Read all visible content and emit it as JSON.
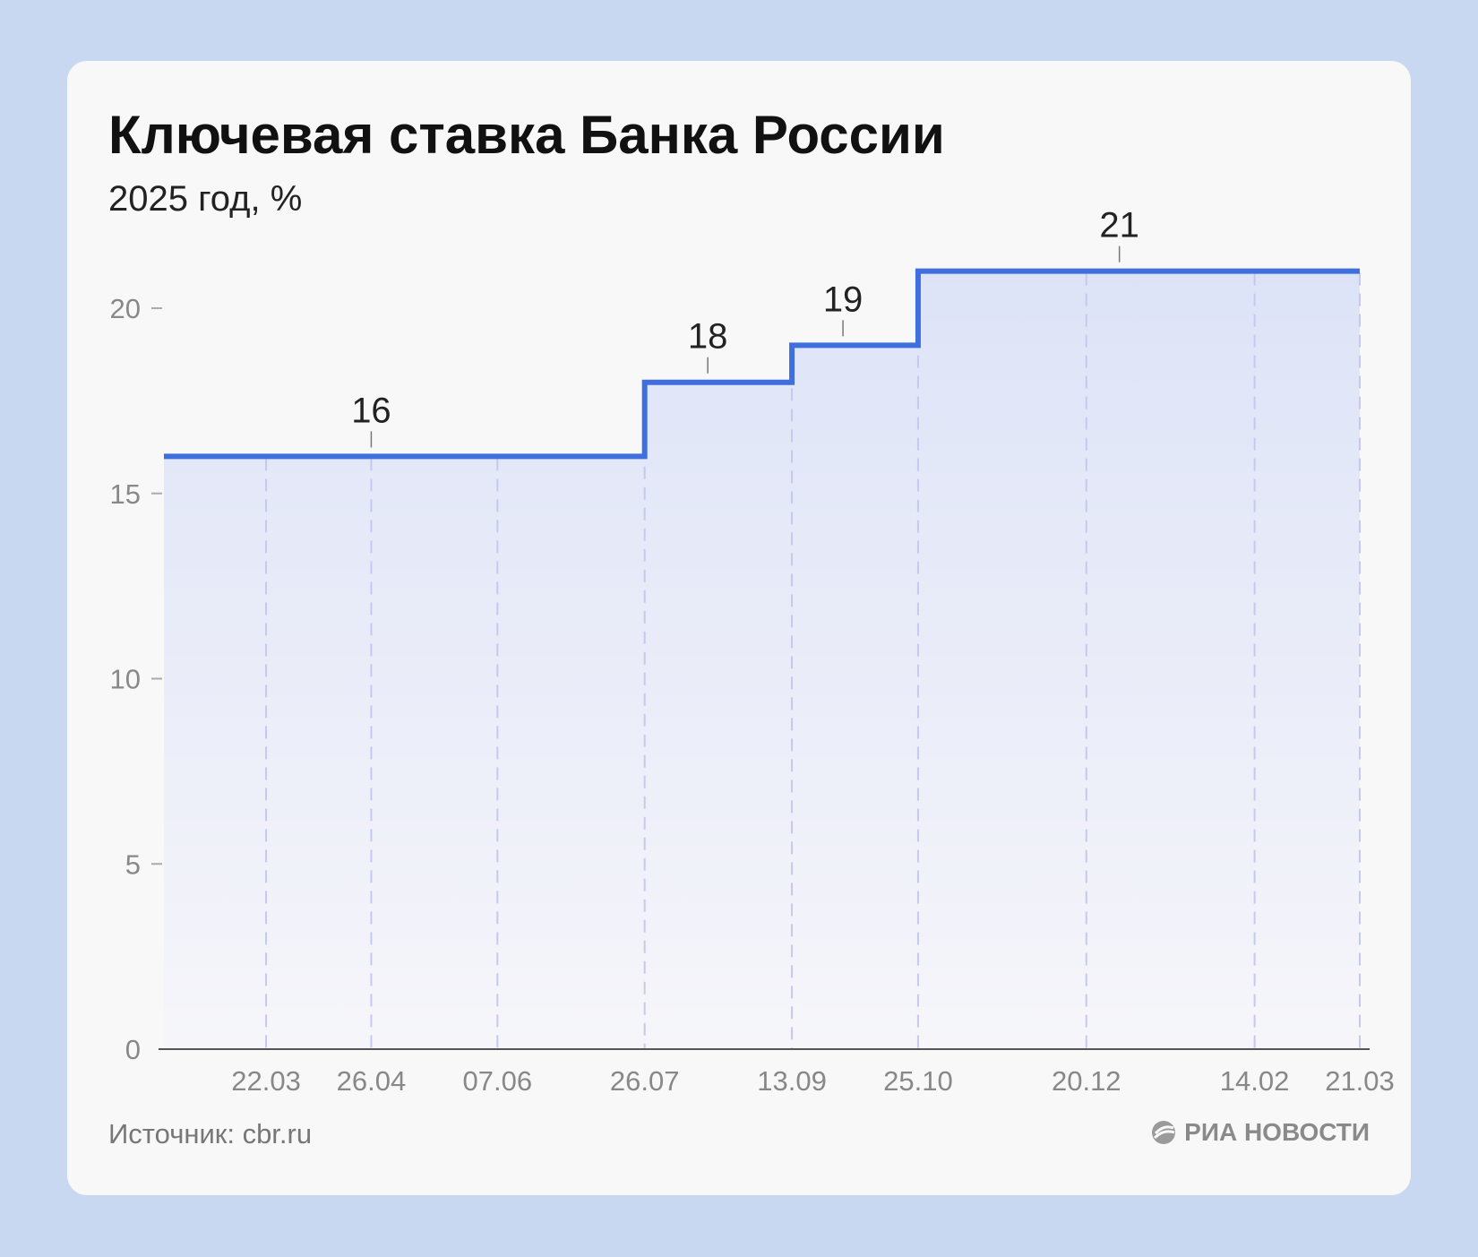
{
  "header": {
    "title": "Ключевая ставка Банка России",
    "subtitle": "2025 год, %"
  },
  "footer": {
    "source": "Источник: cbr.ru",
    "brand": "РИА НОВОСТИ"
  },
  "colors": {
    "line": "#3f6fdc",
    "grid": "#c5c9f0",
    "axis": "#555555",
    "tick_text": "#888888"
  },
  "chart_data": {
    "type": "line",
    "step": true,
    "title": "Ключевая ставка Банка России",
    "subtitle": "2025 год, %",
    "xlabel": "",
    "ylabel": "",
    "ylim": [
      0,
      20
    ],
    "yticks": [
      0,
      5,
      10,
      15,
      20
    ],
    "x_ticks": [
      "22.03",
      "26.04",
      "07.06",
      "26.07",
      "13.09",
      "25.10",
      "20.12",
      "14.02",
      "21.03"
    ],
    "x_dates": [
      "2024-02-17",
      "2024-03-22",
      "2024-04-26",
      "2024-06-07",
      "2024-07-26",
      "2024-09-13",
      "2024-10-25",
      "2024-12-20",
      "2025-02-14",
      "2025-03-21"
    ],
    "values": [
      16,
      16,
      16,
      16,
      18,
      19,
      21,
      21,
      21,
      21
    ],
    "data_labels": [
      {
        "date": "2024-04-26",
        "value": 16,
        "text": "16"
      },
      {
        "date": "2024-08-16",
        "value": 18,
        "text": "18"
      },
      {
        "date": "2024-09-30",
        "value": 19,
        "text": "19"
      },
      {
        "date": "2024-12-31",
        "value": 21,
        "text": "21"
      }
    ],
    "grid": {
      "vertical_dashed": true,
      "horizontal": false
    },
    "fill": "gradient under line"
  }
}
